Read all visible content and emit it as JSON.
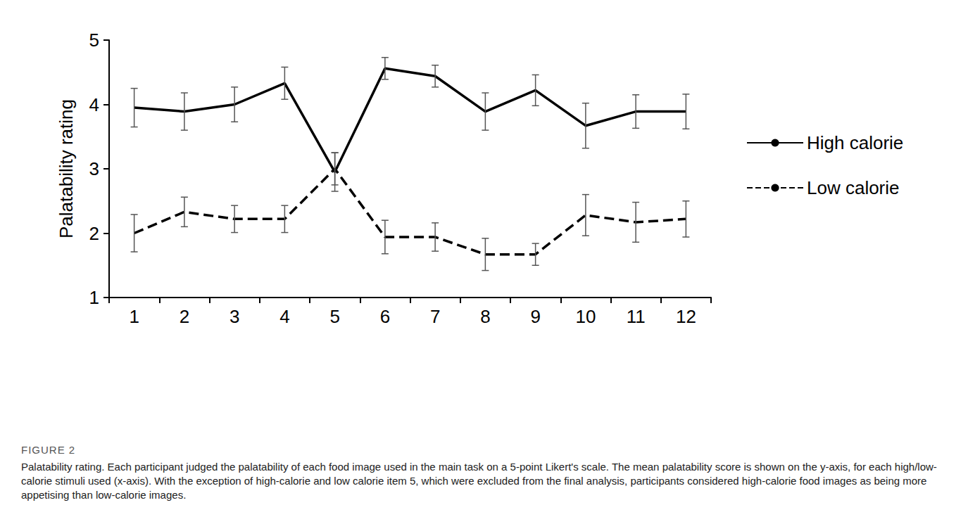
{
  "chart_data": {
    "type": "line",
    "figure_label": "FIGURE 2",
    "caption": "Palatability rating. Each participant judged the palatability of each food image used in the main task on a 5-point Likert's scale. The mean palatability score is shown on the y-axis, for each high/low-calorie stimuli used (x-axis). With the exception of high-calorie and low calorie item 5, which were excluded from the final analysis, participants considered high-calorie food images as being more appetising than low-calorie images.",
    "y_label": "Palatability rating",
    "categories": [
      "1",
      "2",
      "3",
      "4",
      "5",
      "6",
      "7",
      "8",
      "9",
      "10",
      "11",
      "12"
    ],
    "series": [
      {
        "name": "High calorie",
        "color": "#000000",
        "line_style": "solid",
        "values": [
          3.95,
          3.89,
          4.0,
          4.33,
          2.95,
          4.56,
          4.44,
          3.89,
          4.22,
          3.67,
          3.89,
          3.89
        ],
        "errors": [
          0.3,
          0.29,
          0.27,
          0.25,
          0.3,
          0.17,
          0.17,
          0.29,
          0.24,
          0.35,
          0.26,
          0.27
        ]
      },
      {
        "name": "Low calorie",
        "color": "#000000",
        "line_style": "dashed",
        "values": [
          2.0,
          2.33,
          2.22,
          2.22,
          3.0,
          1.94,
          1.94,
          1.67,
          1.67,
          2.28,
          2.17,
          2.22
        ],
        "errors": [
          0.29,
          0.23,
          0.21,
          0.21,
          0.25,
          0.26,
          0.22,
          0.25,
          0.17,
          0.32,
          0.31,
          0.28
        ]
      }
    ],
    "ylim": [
      1,
      5
    ],
    "yticks": [
      1,
      2,
      3,
      4,
      5
    ],
    "grid": false,
    "legend": "right"
  }
}
